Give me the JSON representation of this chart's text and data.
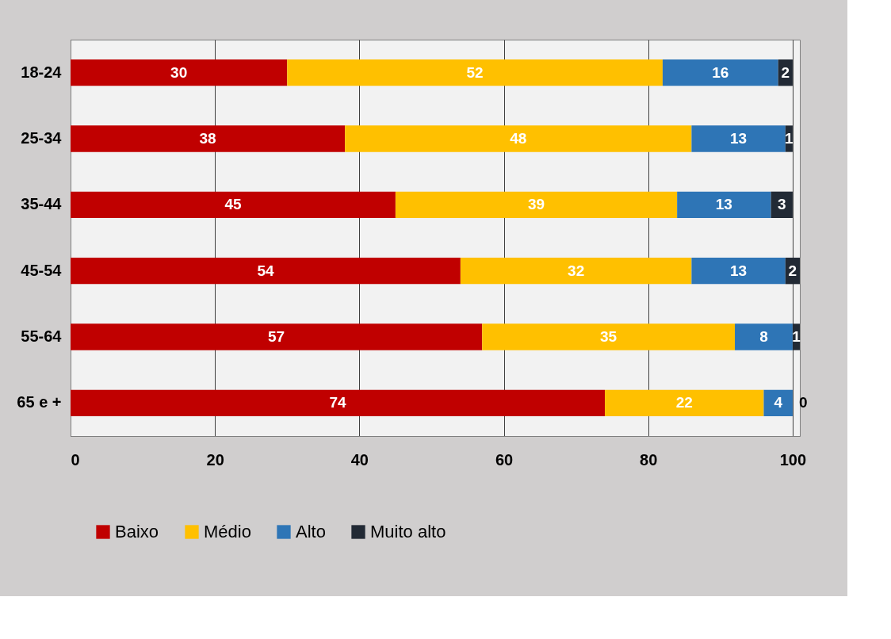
{
  "chart_data": {
    "type": "bar",
    "orientation": "horizontal",
    "stacked": true,
    "data_labels": true,
    "categories": [
      "18-24",
      "25-34",
      "35-44",
      "45-54",
      "55-64",
      "65 e +"
    ],
    "series": [
      {
        "name": "Baixo",
        "color": "#c00000",
        "values": [
          30,
          38,
          45,
          54,
          57,
          74
        ]
      },
      {
        "name": "Médio",
        "color": "#ffc000",
        "values": [
          52,
          48,
          39,
          32,
          35,
          22
        ]
      },
      {
        "name": "Alto",
        "color": "#2e75b6",
        "values": [
          16,
          13,
          13,
          13,
          8,
          4
        ]
      },
      {
        "name": "Muito alto",
        "color": "#222a35",
        "values": [
          2,
          1,
          3,
          2,
          1,
          0
        ]
      }
    ],
    "xlim": [
      0,
      101
    ],
    "xticks": [
      0,
      20,
      40,
      60,
      80,
      100
    ],
    "grid": "x",
    "legend": "bottom"
  }
}
